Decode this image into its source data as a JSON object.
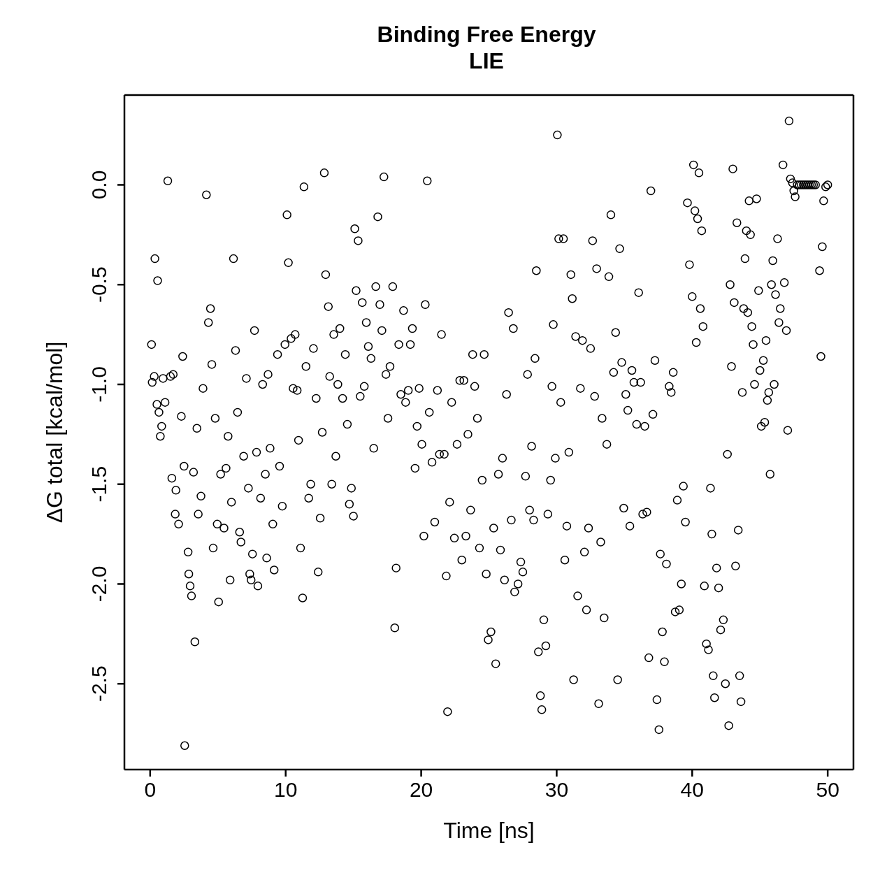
{
  "chart_data": {
    "type": "scatter",
    "title": "Binding Free Energy",
    "subtitle": "LIE",
    "xlabel": "Time [ns]",
    "ylabel": "ΔG total [kcal/mol]",
    "xlim": [
      -1.9,
      51.9
    ],
    "xticks": [
      0,
      10,
      20,
      30,
      40,
      50
    ],
    "ylim": [
      -2.93,
      0.45
    ],
    "yticks": [
      {
        "value": 0,
        "label": "0.0"
      },
      {
        "value": -0.5,
        "label": "-0.5"
      },
      {
        "value": -1,
        "label": "-1.0"
      },
      {
        "value": -1.5,
        "label": "-1.5"
      },
      {
        "value": -2,
        "label": "-2.0"
      },
      {
        "value": -2.5,
        "label": "-2.5"
      }
    ],
    "marker": "circle",
    "series": [
      {
        "color": "#000000",
        "x": [
          0.1,
          0.15,
          0.3,
          0.35,
          0.55,
          0.5,
          0.65,
          0.75,
          0.85,
          0.95,
          1.1,
          1.3,
          1.5,
          1.7,
          1.6,
          1.9,
          1.85,
          2.1,
          2.3,
          2.4,
          2.55,
          2.5,
          2.8,
          2.85,
          2.95,
          3.05,
          3.3,
          3.2,
          3.45,
          3.55,
          3.75,
          3.9,
          4.15,
          4.3,
          4.45,
          4.55,
          4.65,
          4.8,
          4.95,
          5.05,
          5.2,
          5.45,
          5.6,
          5.75,
          5.9,
          6.0,
          6.15,
          6.3,
          6.45,
          6.6,
          6.7,
          6.9,
          7.1,
          7.25,
          7.35,
          7.45,
          7.55,
          7.7,
          7.85,
          7.95,
          8.15,
          8.3,
          8.5,
          8.6,
          8.7,
          8.85,
          9.05,
          9.15,
          9.4,
          9.55,
          9.75,
          9.95,
          10.1,
          10.2,
          10.4,
          10.55,
          10.7,
          10.85,
          10.95,
          11.1,
          11.25,
          11.35,
          11.5,
          11.7,
          11.85,
          12.05,
          12.25,
          12.4,
          12.55,
          12.7,
          12.85,
          12.95,
          13.15,
          13.25,
          13.4,
          13.55,
          13.7,
          13.85,
          14.0,
          14.2,
          14.4,
          14.55,
          14.7,
          14.85,
          15.0,
          15.1,
          15.2,
          15.35,
          15.5,
          15.65,
          15.8,
          15.95,
          16.1,
          16.3,
          16.5,
          16.65,
          16.8,
          16.95,
          17.1,
          17.25,
          17.4,
          17.55,
          17.7,
          17.9,
          18.05,
          18.15,
          18.35,
          18.5,
          18.7,
          18.85,
          19.05,
          19.2,
          19.35,
          19.55,
          19.7,
          19.85,
          20.05,
          20.2,
          20.3,
          20.45,
          20.6,
          20.8,
          21.0,
          21.2,
          21.35,
          21.5,
          21.7,
          21.85,
          21.95,
          22.1,
          22.25,
          22.45,
          22.65,
          22.85,
          23.0,
          23.15,
          23.3,
          23.45,
          23.65,
          23.8,
          23.95,
          24.15,
          24.3,
          24.5,
          24.65,
          24.8,
          24.95,
          25.15,
          25.35,
          25.5,
          25.7,
          25.85,
          26.0,
          26.15,
          26.3,
          26.45,
          26.65,
          26.8,
          26.9,
          27.15,
          27.35,
          27.5,
          27.7,
          27.85,
          28.0,
          28.15,
          28.3,
          28.4,
          28.5,
          28.65,
          28.8,
          28.9,
          29.05,
          29.2,
          29.35,
          29.55,
          29.65,
          29.75,
          29.9,
          30.05,
          30.15,
          30.3,
          30.5,
          30.6,
          30.75,
          30.9,
          31.05,
          31.15,
          31.25,
          31.4,
          31.55,
          31.75,
          31.9,
          32.05,
          32.2,
          32.35,
          32.5,
          32.65,
          32.8,
          32.95,
          33.1,
          33.25,
          33.35,
          33.5,
          33.7,
          33.85,
          34.0,
          34.2,
          34.35,
          34.5,
          34.65,
          34.8,
          34.95,
          35.1,
          35.25,
          35.4,
          35.55,
          35.7,
          35.9,
          36.05,
          36.2,
          36.35,
          36.5,
          36.65,
          36.8,
          36.95,
          37.1,
          37.25,
          37.4,
          37.55,
          37.65,
          37.8,
          37.95,
          38.1,
          38.3,
          38.45,
          38.6,
          38.75,
          38.9,
          39.05,
          39.2,
          39.35,
          39.5,
          39.65,
          39.8,
          40.0,
          40.1,
          40.2,
          40.3,
          40.4,
          40.5,
          40.6,
          40.7,
          40.8,
          40.9,
          41.05,
          41.2,
          41.35,
          41.45,
          41.55,
          41.65,
          41.8,
          41.95,
          42.1,
          42.3,
          42.45,
          42.6,
          42.7,
          42.8,
          42.9,
          43.0,
          43.1,
          43.2,
          43.3,
          43.4,
          43.5,
          43.6,
          43.7,
          43.8,
          43.9,
          44.0,
          44.1,
          44.2,
          44.3,
          44.4,
          44.5,
          44.6,
          44.75,
          44.9,
          45.0,
          45.1,
          45.25,
          45.35,
          45.45,
          45.55,
          45.65,
          45.75,
          45.85,
          45.95,
          46.05,
          46.15,
          46.3,
          46.4,
          46.5,
          46.7,
          46.8,
          46.95,
          47.05,
          47.15,
          47.25,
          47.4,
          47.5,
          47.6,
          47.75,
          47.9,
          48.05,
          48.2,
          48.35,
          48.5,
          48.65,
          48.8,
          48.95,
          49.1,
          49.4,
          49.5,
          49.6,
          49.7,
          49.85,
          50.0
        ],
        "values": [
          -0.8,
          -0.99,
          -0.96,
          -0.37,
          -0.48,
          -1.1,
          -1.14,
          -1.26,
          -1.21,
          -0.97,
          -1.09,
          0.02,
          -0.96,
          -0.95,
          -1.47,
          -1.53,
          -1.65,
          -1.7,
          -1.16,
          -0.86,
          -2.81,
          -1.41,
          -1.84,
          -1.95,
          -2.01,
          -2.06,
          -2.29,
          -1.44,
          -1.22,
          -1.65,
          -1.56,
          -1.02,
          -0.05,
          -0.69,
          -0.62,
          -0.9,
          -1.82,
          -1.17,
          -1.7,
          -2.09,
          -1.45,
          -1.72,
          -1.42,
          -1.26,
          -1.98,
          -1.59,
          -0.37,
          -0.83,
          -1.14,
          -1.74,
          -1.79,
          -1.36,
          -0.97,
          -1.52,
          -1.95,
          -1.98,
          -1.85,
          -0.73,
          -1.34,
          -2.01,
          -1.57,
          -1.0,
          -1.45,
          -1.87,
          -0.95,
          -1.32,
          -1.7,
          -1.93,
          -0.85,
          -1.41,
          -1.61,
          -0.8,
          -0.15,
          -0.39,
          -0.77,
          -1.02,
          -0.75,
          -1.03,
          -1.28,
          -1.82,
          -2.07,
          -0.01,
          -0.91,
          -1.57,
          -1.5,
          -0.82,
          -1.07,
          -1.94,
          -1.67,
          -1.24,
          0.06,
          -0.45,
          -0.61,
          -0.96,
          -1.5,
          -0.75,
          -1.36,
          -1.0,
          -0.72,
          -1.07,
          -0.85,
          -1.2,
          -1.6,
          -1.52,
          -1.66,
          -0.22,
          -0.53,
          -0.28,
          -1.06,
          -0.59,
          -1.01,
          -0.69,
          -0.81,
          -0.87,
          -1.32,
          -0.51,
          -0.16,
          -0.6,
          -0.73,
          0.04,
          -0.95,
          -1.17,
          -0.91,
          -0.51,
          -2.22,
          -1.92,
          -0.8,
          -1.05,
          -0.63,
          -1.09,
          -1.03,
          -0.8,
          -0.72,
          -1.42,
          -1.21,
          -1.02,
          -1.3,
          -1.76,
          -0.6,
          0.02,
          -1.14,
          -1.39,
          -1.69,
          -1.03,
          -1.35,
          -0.75,
          -1.35,
          -1.96,
          -2.64,
          -1.59,
          -1.09,
          -1.77,
          -1.3,
          -0.98,
          -1.88,
          -0.98,
          -1.76,
          -1.25,
          -1.63,
          -0.85,
          -1.01,
          -1.17,
          -1.82,
          -1.48,
          -0.85,
          -1.95,
          -2.28,
          -2.24,
          -1.72,
          -2.4,
          -1.45,
          -1.83,
          -1.37,
          -1.98,
          -1.05,
          -0.64,
          -1.68,
          -0.72,
          -2.04,
          -2.0,
          -1.89,
          -1.94,
          -1.46,
          -0.95,
          -1.63,
          -1.31,
          -1.68,
          -0.87,
          -0.43,
          -2.34,
          -2.56,
          -2.63,
          -2.18,
          -2.31,
          -1.65,
          -1.48,
          -1.01,
          -0.7,
          -1.37,
          0.25,
          -0.27,
          -1.09,
          -0.27,
          -1.88,
          -1.71,
          -1.34,
          -0.45,
          -0.57,
          -2.48,
          -0.76,
          -2.06,
          -1.02,
          -0.78,
          -1.84,
          -2.13,
          -1.72,
          -0.82,
          -0.28,
          -1.06,
          -0.42,
          -2.6,
          -1.79,
          -1.17,
          -2.17,
          -1.3,
          -0.46,
          -0.15,
          -0.94,
          -0.74,
          -2.48,
          -0.32,
          -0.89,
          -1.62,
          -1.05,
          -1.13,
          -1.71,
          -0.93,
          -0.99,
          -1.2,
          -0.54,
          -0.99,
          -1.65,
          -1.21,
          -1.64,
          -2.37,
          -0.03,
          -1.15,
          -0.88,
          -2.58,
          -2.73,
          -1.85,
          -2.24,
          -2.39,
          -1.9,
          -1.01,
          -1.04,
          -0.94,
          -2.14,
          -1.58,
          -2.13,
          -2.0,
          -1.51,
          -1.69,
          -0.09,
          -0.4,
          -0.56,
          0.1,
          -0.13,
          -0.79,
          -0.17,
          0.06,
          -0.62,
          -0.23,
          -0.71,
          -2.01,
          -2.3,
          -2.33,
          -1.52,
          -1.75,
          -2.46,
          -2.57,
          -1.92,
          -2.02,
          -2.23,
          -2.18,
          -2.5,
          -1.35,
          -2.71,
          -0.5,
          -0.91,
          0.08,
          -0.59,
          -1.91,
          -0.19,
          -1.73,
          -2.46,
          -2.59,
          -1.04,
          -0.62,
          -0.37,
          -0.23,
          -0.64,
          -0.08,
          -0.25,
          -0.71,
          -0.8,
          -1.0,
          -0.07,
          -0.53,
          -0.93,
          -1.21,
          -0.88,
          -1.19,
          -0.78,
          -1.08,
          -1.04,
          -1.45,
          -0.5,
          -0.38,
          -1.0,
          -0.55,
          -0.27,
          -0.69,
          -0.62,
          0.1,
          -0.49,
          -0.73,
          -1.23,
          0.32,
          0.03,
          0.01,
          -0.03,
          -0.06,
          0.0,
          0.0,
          0.0,
          0.0,
          0.0,
          0.0,
          0.0,
          0.0,
          0.0,
          0.0,
          -0.43,
          -0.86,
          -0.31,
          -0.08,
          -0.01,
          0.0
        ]
      }
    ]
  }
}
